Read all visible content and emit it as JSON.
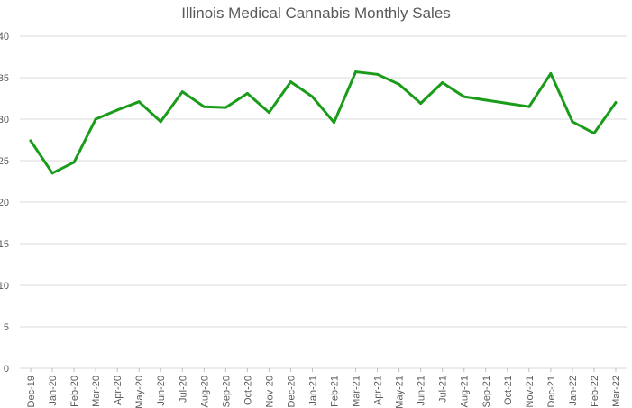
{
  "chart_data": {
    "type": "line",
    "title": "Illinois Medical Cannabis Monthly Sales",
    "xlabel": "",
    "ylabel": "",
    "ylim": [
      0,
      40
    ],
    "yticks": [
      0,
      5,
      10,
      15,
      20,
      25,
      30,
      35,
      40
    ],
    "grid": true,
    "legend": "none",
    "categories": [
      "Dec-19",
      "Jan-20",
      "Feb-20",
      "Mar-20",
      "Apr-20",
      "May-20",
      "Jun-20",
      "Jul-20",
      "Aug-20",
      "Sep-20",
      "Oct-20",
      "Nov-20",
      "Dec-20",
      "Jan-21",
      "Feb-21",
      "Mar-21",
      "Apr-21",
      "May-21",
      "Jun-21",
      "Jul-21",
      "Aug-21",
      "Sep-21",
      "Oct-21",
      "Nov-21",
      "Dec-21",
      "Jan-22",
      "Feb-22",
      "Mar-22"
    ],
    "series": [
      {
        "color": "#1a9c1a",
        "values": [
          27.4,
          23.5,
          24.8,
          30.0,
          31.1,
          32.1,
          29.7,
          33.3,
          31.5,
          31.4,
          33.1,
          30.8,
          34.5,
          32.7,
          29.6,
          35.7,
          35.4,
          34.2,
          31.9,
          34.4,
          32.7,
          32.3,
          31.9,
          31.5,
          35.5,
          29.7,
          28.3,
          32.0
        ]
      }
    ]
  }
}
